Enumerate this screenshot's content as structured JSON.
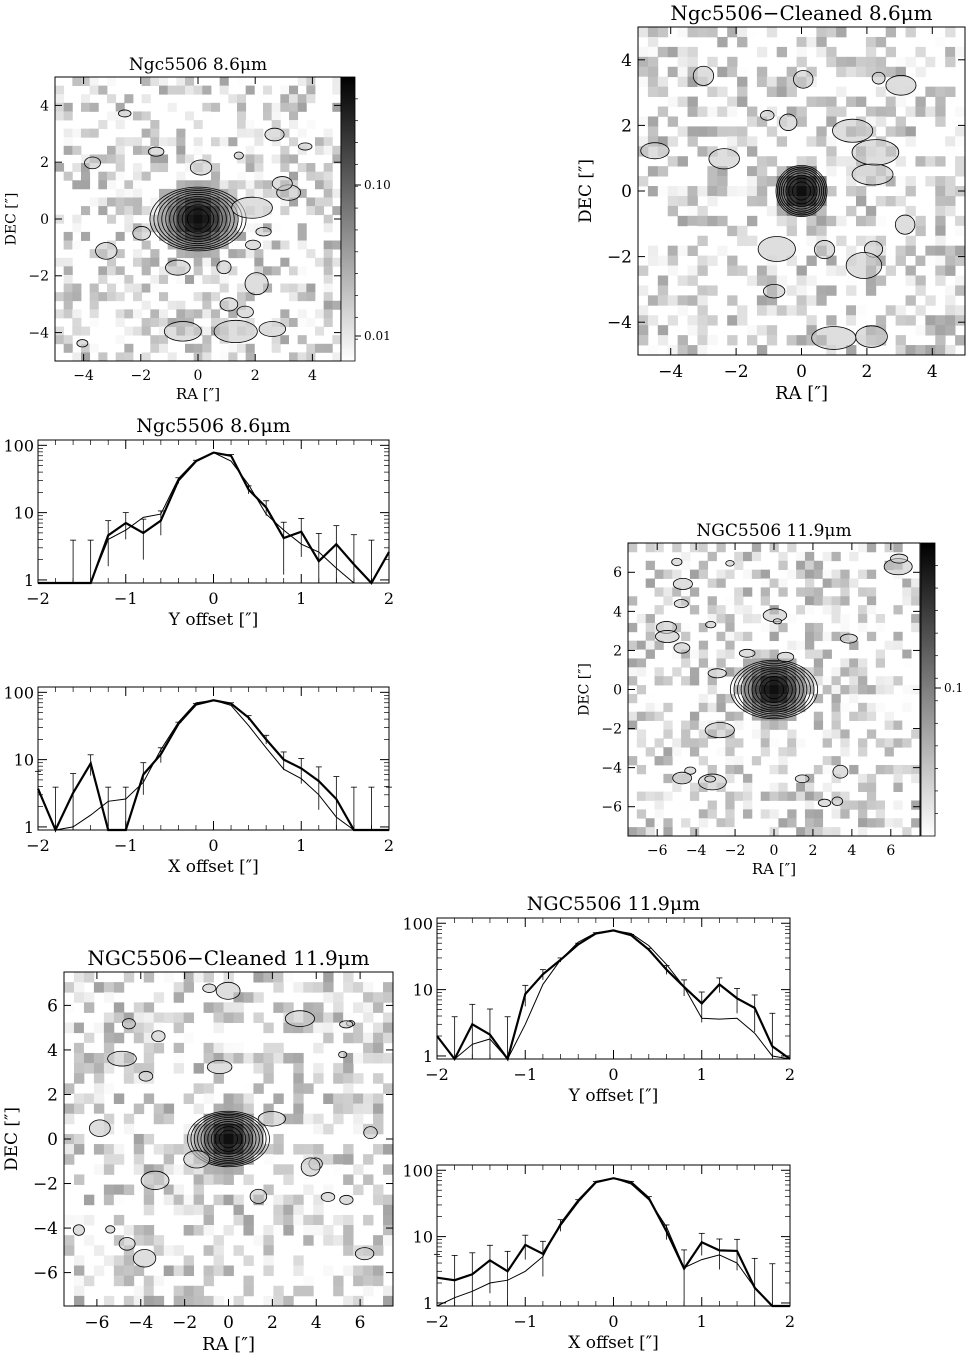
{
  "chart_data": [
    {
      "id": "img1",
      "type": "heatmap",
      "title": "Ngc5506 8.6μm",
      "xlabel": "RA [″]",
      "ylabel": "DEC [″]",
      "xlim": [
        -5,
        5
      ],
      "ylim": [
        -5,
        5
      ],
      "xticks": [
        "−4",
        "−2",
        "0",
        "2",
        "4"
      ],
      "yticks": [
        "−4",
        "−2",
        "0",
        "2",
        "4"
      ],
      "colorbar": {
        "ticks": [
          "0.10",
          "0.01"
        ],
        "scale": "log"
      },
      "source": {
        "ra": 0,
        "dec": 0,
        "fwhm_arcsec": 0.9,
        "extended": true
      }
    },
    {
      "id": "img2",
      "type": "heatmap",
      "title": "Ngc5506−Cleaned 8.6μm",
      "xlabel": "RA [″]",
      "ylabel": "DEC [″]",
      "xlim": [
        -5,
        5
      ],
      "ylim": [
        -5,
        5
      ],
      "xticks": [
        "−4",
        "−2",
        "0",
        "2",
        "4"
      ],
      "yticks": [
        "−4",
        "−2",
        "0",
        "2",
        "4"
      ],
      "source": {
        "ra": 0,
        "dec": 0,
        "fwhm_arcsec": 0.7,
        "extended": false
      }
    },
    {
      "id": "prof1",
      "type": "line",
      "title": "Ngc5506 8.6μm",
      "xlabel": "Y offset [″]",
      "ylabel": "",
      "xlim": [
        -2,
        2
      ],
      "ylim": [
        0.9,
        120
      ],
      "yscale": "log",
      "xticks": [
        "−2",
        "−1",
        "0",
        "1",
        "2"
      ],
      "yticks": [
        "1",
        "10",
        "100"
      ],
      "x": [
        -2.0,
        -1.8,
        -1.6,
        -1.4,
        -1.2,
        -1.0,
        -0.8,
        -0.6,
        -0.4,
        -0.2,
        0.0,
        0.2,
        0.4,
        0.6,
        0.8,
        1.0,
        1.2,
        1.4,
        1.6,
        1.8,
        2.0
      ],
      "series": [
        {
          "values": [
            0.9,
            0.9,
            0.9,
            0.9,
            4.6,
            7.0,
            5.0,
            7.6,
            30,
            58,
            78,
            70,
            22,
            12,
            4.2,
            5.2,
            1.9,
            3.4,
            1.7,
            0.9,
            2.6
          ],
          "errors": [
            0,
            0,
            3,
            3,
            3,
            3,
            3,
            3,
            3,
            2,
            0,
            3,
            3,
            3,
            3,
            3,
            3,
            3,
            3,
            3,
            0
          ]
        },
        {
          "values": [
            0.9,
            0.9,
            0.9,
            0.9,
            4.0,
            5.5,
            8.5,
            9.5,
            32,
            60,
            78,
            58,
            26,
            9.5,
            5.5,
            3.4,
            2.6,
            1.5,
            0.9,
            0.9,
            0.9
          ]
        }
      ]
    },
    {
      "id": "prof2",
      "type": "line",
      "title": "",
      "xlabel": "X offset [″]",
      "ylabel": "",
      "xlim": [
        -2,
        2
      ],
      "ylim": [
        0.9,
        120
      ],
      "yscale": "log",
      "xticks": [
        "−2",
        "−1",
        "0",
        "1",
        "2"
      ],
      "yticks": [
        "1",
        "10",
        "100"
      ],
      "x": [
        -2.0,
        -1.8,
        -1.6,
        -1.4,
        -1.2,
        -1.0,
        -0.8,
        -0.6,
        -0.4,
        -0.2,
        0.0,
        0.2,
        0.4,
        0.6,
        0.8,
        1.0,
        1.2,
        1.4,
        1.6,
        1.8,
        2.0
      ],
      "series": [
        {
          "values": [
            3.7,
            0.9,
            3.2,
            8.8,
            0.9,
            0.9,
            6.0,
            12,
            34,
            66,
            76,
            68,
            42,
            20,
            10,
            7.4,
            4.8,
            2.6,
            0.9,
            0.9,
            0.9
          ],
          "errors": [
            3,
            3,
            3,
            3,
            3,
            3,
            3,
            3,
            2,
            2,
            0,
            2,
            3,
            3,
            3,
            3,
            3,
            3,
            3,
            3,
            3
          ]
        },
        {
          "values": [
            0.9,
            0.9,
            1.0,
            1.5,
            2.4,
            2.6,
            4.6,
            14,
            36,
            70,
            76,
            64,
            32,
            15,
            7.2,
            5.2,
            3.0,
            1.4,
            0.9,
            0.9,
            0.9
          ]
        }
      ]
    },
    {
      "id": "img3",
      "type": "heatmap",
      "title": "NGC5506 11.9μm",
      "xlabel": "RA [″]",
      "ylabel": "DEC [″]",
      "xlim": [
        -7.5,
        7.5
      ],
      "ylim": [
        -7.5,
        7.5
      ],
      "xticks": [
        "−6",
        "−4",
        "−2",
        "0",
        "2",
        "4",
        "6"
      ],
      "yticks": [
        "−6",
        "−4",
        "−2",
        "0",
        "2",
        "4",
        "6"
      ],
      "colorbar": {
        "ticks": [
          "0.1"
        ],
        "scale": "log"
      },
      "source": {
        "ra": 0,
        "dec": 0,
        "fwhm_arcsec": 1.2,
        "extended": true
      }
    },
    {
      "id": "img4",
      "type": "heatmap",
      "title": "NGC5506−Cleaned 11.9μm",
      "xlabel": "RA [″]",
      "ylabel": "DEC [″]",
      "xlim": [
        -7.5,
        7.5
      ],
      "ylim": [
        -7.5,
        7.5
      ],
      "xticks": [
        "−6",
        "−4",
        "−2",
        "0",
        "2",
        "4",
        "6"
      ],
      "yticks": [
        "−6",
        "−4",
        "−2",
        "0",
        "2",
        "4",
        "6"
      ],
      "source": {
        "ra": 0,
        "dec": 0,
        "fwhm_arcsec": 1.0,
        "extended": true
      }
    },
    {
      "id": "prof3",
      "type": "line",
      "title": "NGC5506 11.9μm",
      "xlabel": "Y offset [″]",
      "ylabel": "",
      "xlim": [
        -2,
        2
      ],
      "ylim": [
        0.9,
        120
      ],
      "yscale": "log",
      "xticks": [
        "−2",
        "−1",
        "0",
        "1",
        "2"
      ],
      "yticks": [
        "1",
        "10",
        "100"
      ],
      "x": [
        -2.0,
        -1.8,
        -1.6,
        -1.4,
        -1.2,
        -1.0,
        -0.8,
        -0.6,
        -0.4,
        -0.2,
        0.0,
        0.2,
        0.4,
        0.6,
        0.8,
        1.0,
        1.2,
        1.4,
        1.6,
        1.8,
        2.0
      ],
      "series": [
        {
          "values": [
            2.0,
            0.9,
            3.0,
            2.1,
            0.9,
            8.6,
            17,
            28,
            48,
            70,
            78,
            66,
            40,
            20,
            11,
            6.2,
            12,
            7.4,
            5.3,
            1.4,
            0.9
          ],
          "errors": [
            0,
            3,
            3,
            3,
            3,
            3,
            3,
            2,
            2,
            2,
            0,
            2,
            2,
            3,
            3,
            3,
            3,
            3,
            3,
            3,
            0
          ]
        },
        {
          "values": [
            0.9,
            0.9,
            1.5,
            1.8,
            0.9,
            3.0,
            12,
            28,
            52,
            72,
            78,
            70,
            46,
            24,
            11,
            3.7,
            3.6,
            3.7,
            2.2,
            1.0,
            0.9
          ]
        }
      ]
    },
    {
      "id": "prof4",
      "type": "line",
      "title": "",
      "xlabel": "X offset [″]",
      "ylabel": "",
      "xlim": [
        -2,
        2
      ],
      "ylim": [
        0.9,
        120
      ],
      "yscale": "log",
      "xticks": [
        "−2",
        "−1",
        "0",
        "1",
        "2"
      ],
      "yticks": [
        "1",
        "10",
        "100"
      ],
      "x": [
        -2.0,
        -1.8,
        -1.6,
        -1.4,
        -1.2,
        -1.0,
        -0.8,
        -0.6,
        -0.4,
        -0.2,
        0.0,
        0.2,
        0.4,
        0.6,
        0.8,
        1.0,
        1.2,
        1.4,
        1.6,
        1.8,
        2.0
      ],
      "series": [
        {
          "values": [
            2.4,
            2.2,
            2.7,
            4.4,
            3.0,
            7.5,
            5.5,
            15,
            34,
            66,
            76,
            66,
            38,
            12,
            3.3,
            8.2,
            6.2,
            6.1,
            1.7,
            0.9,
            0.9
          ],
          "errors": [
            3,
            3,
            3,
            3,
            3,
            3,
            3,
            3,
            2,
            2,
            0,
            2,
            2,
            3,
            3,
            3,
            3,
            3,
            3,
            3,
            0
          ]
        },
        {
          "values": [
            0.9,
            1.2,
            1.5,
            2.0,
            2.2,
            3.0,
            5.0,
            16,
            36,
            68,
            76,
            62,
            36,
            14,
            3.4,
            4.5,
            5.3,
            4.0,
            1.7,
            0.9,
            0.9
          ]
        }
      ]
    }
  ]
}
